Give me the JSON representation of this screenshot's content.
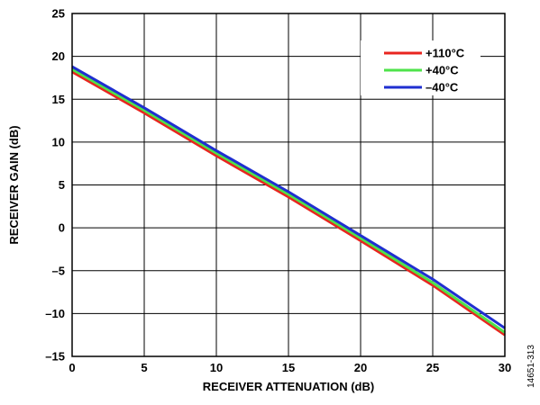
{
  "chart_data": {
    "type": "line",
    "title": "",
    "xlabel": "RECEIVER ATTENUATION (dB)",
    "ylabel": "RECEIVER GAIN (dB)",
    "xlim": [
      0,
      30
    ],
    "ylim": [
      -15,
      25
    ],
    "xticks": [
      "0",
      "5",
      "10",
      "15",
      "20",
      "25",
      "30"
    ],
    "yticks": [
      "25",
      "20",
      "15",
      "10",
      "5",
      "0",
      "–5",
      "–10",
      "–15"
    ],
    "grid": true,
    "legend_position": "top-right",
    "series": [
      {
        "name": "+110°C",
        "color": "#e8251f",
        "x": [
          0,
          5,
          10,
          15,
          20,
          25,
          30
        ],
        "y": [
          18.2,
          13.4,
          8.4,
          3.6,
          -1.5,
          -6.7,
          -12.5
        ]
      },
      {
        "name": "+40°C",
        "color": "#4ee34a",
        "x": [
          0,
          5,
          10,
          15,
          20,
          25,
          30
        ],
        "y": [
          18.5,
          13.7,
          8.7,
          3.9,
          -1.2,
          -6.4,
          -12.2
        ]
      },
      {
        "name": "–40°C",
        "color": "#1f2fd0",
        "x": [
          0,
          5,
          10,
          15,
          20,
          25,
          30
        ],
        "y": [
          18.8,
          14.0,
          9.0,
          4.2,
          -0.9,
          -6.0,
          -11.7
        ]
      }
    ]
  },
  "figure_id": "14651-313"
}
